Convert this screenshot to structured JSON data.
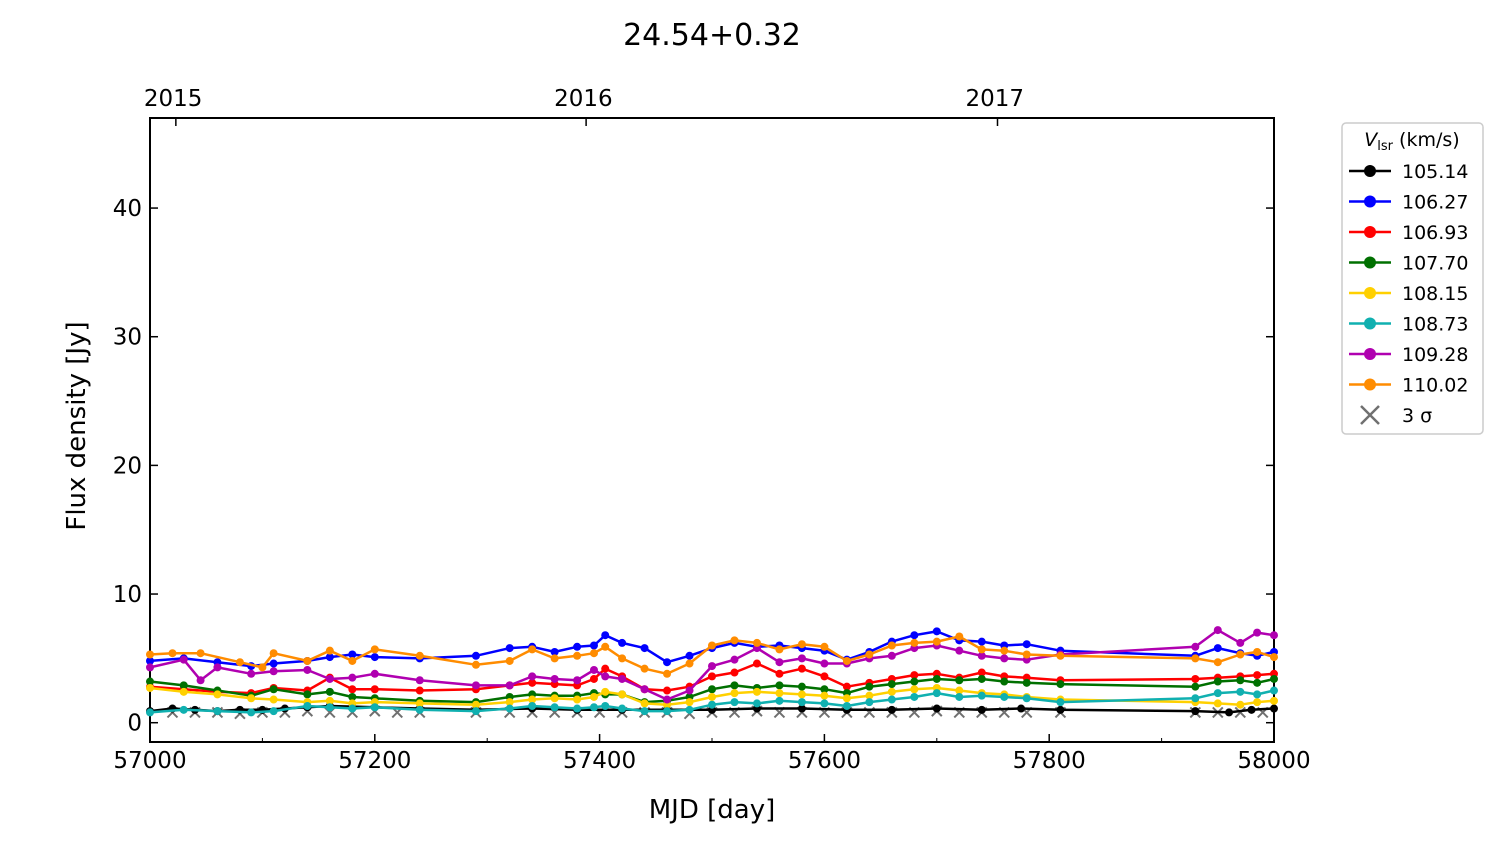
{
  "chart_data": {
    "type": "line",
    "title": "24.54+0.32",
    "xlabel": "MJD [day]",
    "ylabel": "Flux density [Jy]",
    "xlim": [
      57000,
      58000
    ],
    "ylim": [
      -1.5,
      47
    ],
    "grid": false,
    "x_ticks": [
      57000,
      57200,
      57400,
      57600,
      57800,
      58000
    ],
    "y_ticks": [
      0,
      10,
      20,
      30,
      40
    ],
    "top_axis": {
      "ticks": [
        {
          "label": "2015",
          "mjd": 57023
        },
        {
          "label": "2016",
          "mjd": 57388
        },
        {
          "label": "2017",
          "mjd": 57754
        }
      ]
    },
    "legend": {
      "title_symbol": "V",
      "title_subscript": "lsr",
      "title_unit": " (km/s)",
      "placement": "outside-right-top"
    },
    "series": [
      {
        "name": "105.14",
        "color": "#000000",
        "x": [
          57000,
          57020,
          57040,
          57060,
          57080,
          57100,
          57120,
          57140,
          57160,
          57200,
          57240,
          57290,
          57340,
          57380,
          57420,
          57460,
          57500,
          57540,
          57580,
          57620,
          57660,
          57700,
          57740,
          57775,
          57810,
          57930,
          57960,
          57980,
          58000
        ],
        "y": [
          0.9,
          1.1,
          1.0,
          0.9,
          1.0,
          1.0,
          1.1,
          1.2,
          1.3,
          1.2,
          1.1,
          1.0,
          1.1,
          1.0,
          1.0,
          1.0,
          1.0,
          1.1,
          1.1,
          1.0,
          1.0,
          1.1,
          1.0,
          1.1,
          1.0,
          0.9,
          0.8,
          1.0,
          1.1
        ]
      },
      {
        "name": "106.27",
        "color": "#0000ff",
        "x": [
          57000,
          57030,
          57060,
          57090,
          57110,
          57140,
          57160,
          57180,
          57200,
          57240,
          57290,
          57320,
          57340,
          57360,
          57380,
          57395,
          57405,
          57420,
          57440,
          57460,
          57480,
          57500,
          57520,
          57540,
          57560,
          57580,
          57600,
          57620,
          57640,
          57660,
          57680,
          57700,
          57720,
          57740,
          57760,
          57780,
          57810,
          57930,
          57950,
          57970,
          57985,
          58000
        ],
        "y": [
          4.8,
          5.0,
          4.7,
          4.4,
          4.6,
          4.8,
          5.1,
          5.3,
          5.1,
          5.0,
          5.2,
          5.8,
          5.9,
          5.5,
          5.9,
          6.0,
          6.8,
          6.2,
          5.8,
          4.7,
          5.2,
          5.8,
          6.2,
          5.9,
          6.0,
          5.8,
          5.6,
          4.9,
          5.5,
          6.3,
          6.8,
          7.1,
          6.4,
          6.3,
          6.0,
          6.1,
          5.6,
          5.2,
          5.8,
          5.4,
          5.2,
          5.5
        ]
      },
      {
        "name": "106.93",
        "color": "#ff0000",
        "x": [
          57000,
          57030,
          57060,
          57090,
          57110,
          57140,
          57160,
          57180,
          57200,
          57240,
          57290,
          57320,
          57340,
          57360,
          57380,
          57395,
          57405,
          57420,
          57440,
          57460,
          57480,
          57500,
          57520,
          57540,
          57560,
          57580,
          57600,
          57620,
          57640,
          57660,
          57680,
          57700,
          57720,
          57740,
          57760,
          57780,
          57810,
          57930,
          57950,
          57970,
          57985,
          58000
        ],
        "y": [
          2.8,
          2.6,
          2.4,
          2.3,
          2.7,
          2.5,
          3.5,
          2.6,
          2.6,
          2.5,
          2.6,
          2.9,
          3.1,
          3.0,
          2.9,
          3.4,
          4.2,
          3.6,
          2.6,
          2.5,
          2.8,
          3.6,
          3.9,
          4.6,
          3.8,
          4.2,
          3.6,
          2.8,
          3.1,
          3.4,
          3.7,
          3.8,
          3.5,
          3.9,
          3.6,
          3.5,
          3.3,
          3.4,
          3.5,
          3.6,
          3.7,
          3.8
        ]
      },
      {
        "name": "107.70",
        "color": "#007000",
        "x": [
          57000,
          57030,
          57060,
          57090,
          57110,
          57140,
          57160,
          57180,
          57200,
          57240,
          57290,
          57320,
          57340,
          57360,
          57380,
          57395,
          57405,
          57420,
          57440,
          57460,
          57480,
          57500,
          57520,
          57540,
          57560,
          57580,
          57600,
          57620,
          57640,
          57660,
          57680,
          57700,
          57720,
          57740,
          57760,
          57780,
          57810,
          57930,
          57950,
          57970,
          57985,
          58000
        ],
        "y": [
          3.2,
          2.9,
          2.5,
          2.1,
          2.6,
          2.2,
          2.4,
          2.0,
          1.9,
          1.7,
          1.6,
          2.0,
          2.2,
          2.1,
          2.1,
          2.3,
          2.2,
          2.2,
          1.6,
          1.7,
          2.0,
          2.6,
          2.9,
          2.7,
          2.9,
          2.8,
          2.6,
          2.3,
          2.8,
          3.0,
          3.2,
          3.4,
          3.3,
          3.4,
          3.2,
          3.1,
          3.0,
          2.8,
          3.2,
          3.3,
          3.1,
          3.4
        ]
      },
      {
        "name": "108.15",
        "color": "#ffd000",
        "x": [
          57000,
          57030,
          57060,
          57090,
          57110,
          57140,
          57160,
          57180,
          57200,
          57240,
          57290,
          57320,
          57340,
          57360,
          57380,
          57395,
          57405,
          57420,
          57440,
          57460,
          57480,
          57500,
          57520,
          57540,
          57560,
          57580,
          57600,
          57620,
          57640,
          57660,
          57680,
          57700,
          57720,
          57740,
          57760,
          57780,
          57810,
          57930,
          57950,
          57970,
          57985,
          58000
        ],
        "y": [
          2.7,
          2.4,
          2.2,
          1.9,
          1.8,
          1.6,
          1.7,
          1.5,
          1.6,
          1.5,
          1.4,
          1.6,
          1.8,
          1.9,
          1.8,
          2.0,
          2.4,
          2.2,
          1.5,
          1.4,
          1.6,
          2.0,
          2.3,
          2.4,
          2.3,
          2.2,
          2.1,
          1.9,
          2.1,
          2.4,
          2.6,
          2.7,
          2.5,
          2.3,
          2.2,
          2.0,
          1.8,
          1.6,
          1.5,
          1.4,
          1.6,
          1.7
        ]
      },
      {
        "name": "108.73",
        "color": "#10b0b0",
        "x": [
          57000,
          57030,
          57060,
          57090,
          57110,
          57140,
          57160,
          57180,
          57200,
          57240,
          57290,
          57320,
          57340,
          57360,
          57380,
          57395,
          57405,
          57420,
          57440,
          57460,
          57480,
          57500,
          57520,
          57540,
          57560,
          57580,
          57600,
          57620,
          57640,
          57660,
          57680,
          57700,
          57720,
          57740,
          57760,
          57780,
          57810,
          57930,
          57950,
          57970,
          57985,
          58000
        ],
        "y": [
          0.8,
          1.0,
          0.9,
          0.8,
          0.9,
          1.3,
          1.2,
          1.1,
          1.2,
          1.0,
          0.9,
          1.1,
          1.3,
          1.2,
          1.1,
          1.2,
          1.3,
          1.1,
          0.9,
          0.9,
          1.0,
          1.4,
          1.6,
          1.5,
          1.7,
          1.6,
          1.5,
          1.3,
          1.6,
          1.8,
          2.0,
          2.3,
          2.0,
          2.1,
          2.0,
          1.9,
          1.6,
          1.9,
          2.3,
          2.4,
          2.2,
          2.5
        ]
      },
      {
        "name": "109.28",
        "color": "#b000b0",
        "x": [
          57000,
          57030,
          57045,
          57060,
          57090,
          57110,
          57140,
          57160,
          57180,
          57200,
          57240,
          57290,
          57320,
          57340,
          57360,
          57380,
          57395,
          57405,
          57420,
          57440,
          57460,
          57480,
          57500,
          57520,
          57540,
          57560,
          57580,
          57600,
          57620,
          57640,
          57660,
          57680,
          57700,
          57720,
          57740,
          57760,
          57780,
          57810,
          57930,
          57950,
          57970,
          57985,
          58000
        ],
        "y": [
          4.3,
          4.9,
          3.3,
          4.3,
          3.8,
          4.0,
          4.1,
          3.4,
          3.5,
          3.8,
          3.3,
          2.9,
          2.9,
          3.6,
          3.4,
          3.3,
          4.1,
          3.6,
          3.4,
          2.6,
          1.8,
          2.5,
          4.4,
          4.9,
          5.8,
          4.7,
          5.0,
          4.6,
          4.6,
          5.0,
          5.2,
          5.8,
          6.0,
          5.6,
          5.2,
          5.0,
          4.9,
          5.3,
          5.9,
          7.2,
          6.2,
          7.0,
          6.8
        ]
      },
      {
        "name": "110.02",
        "color": "#ff8c00",
        "x": [
          57000,
          57020,
          57045,
          57080,
          57100,
          57110,
          57140,
          57160,
          57180,
          57200,
          57240,
          57290,
          57320,
          57340,
          57360,
          57380,
          57395,
          57405,
          57420,
          57440,
          57460,
          57480,
          57500,
          57520,
          57540,
          57560,
          57580,
          57600,
          57620,
          57640,
          57660,
          57680,
          57700,
          57720,
          57740,
          57760,
          57780,
          57810,
          57930,
          57950,
          57970,
          57985,
          58000
        ],
        "y": [
          5.3,
          5.4,
          5.4,
          4.7,
          4.3,
          5.4,
          4.8,
          5.6,
          4.8,
          5.7,
          5.2,
          4.5,
          4.8,
          5.7,
          5.0,
          5.2,
          5.4,
          5.9,
          5.0,
          4.2,
          3.8,
          4.6,
          6.0,
          6.4,
          6.2,
          5.7,
          6.1,
          5.9,
          4.8,
          5.3,
          6.0,
          6.2,
          6.3,
          6.7,
          5.7,
          5.6,
          5.3,
          5.2,
          5.0,
          4.7,
          5.3,
          5.5,
          5.1
        ]
      }
    ],
    "sigma3": {
      "name": "3 σ",
      "color": "#707070",
      "x": [
        57020,
        57040,
        57060,
        57080,
        57100,
        57120,
        57140,
        57160,
        57180,
        57200,
        57220,
        57240,
        57290,
        57320,
        57340,
        57360,
        57380,
        57400,
        57420,
        57440,
        57460,
        57480,
        57500,
        57520,
        57540,
        57560,
        57580,
        57600,
        57620,
        57640,
        57660,
        57680,
        57700,
        57720,
        57740,
        57760,
        57780,
        57810,
        57930,
        57950,
        57970,
        57990
      ],
      "y": [
        0.8,
        0.8,
        0.8,
        0.7,
        0.8,
        0.8,
        0.9,
        0.8,
        0.8,
        0.9,
        0.8,
        0.8,
        0.8,
        0.8,
        0.8,
        0.8,
        0.8,
        0.8,
        0.8,
        0.8,
        0.8,
        0.7,
        0.8,
        0.8,
        0.9,
        0.8,
        0.8,
        0.8,
        0.8,
        0.8,
        0.8,
        0.8,
        0.9,
        0.8,
        0.8,
        0.8,
        0.8,
        0.8,
        0.8,
        0.8,
        0.8,
        0.8
      ]
    }
  }
}
